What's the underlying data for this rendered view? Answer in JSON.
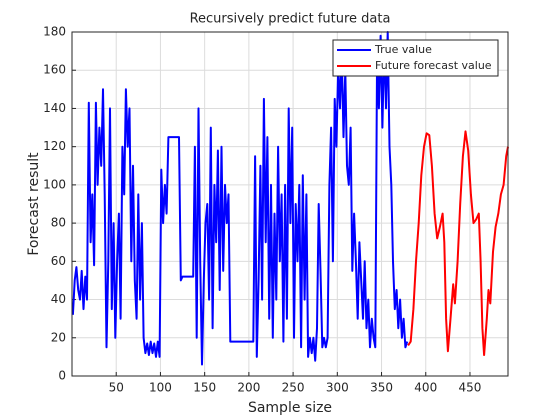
{
  "chart_data": {
    "type": "line",
    "title": "Recursively predict future data",
    "x_label": "Sample size",
    "y_label": "Forecast result",
    "xlim": [
      0,
      493
    ],
    "ylim": [
      0,
      180
    ],
    "xticks": [
      50,
      100,
      150,
      200,
      250,
      300,
      350,
      400,
      450
    ],
    "yticks": [
      0,
      20,
      40,
      60,
      80,
      100,
      120,
      140,
      160,
      180
    ],
    "grid": true,
    "legend": "northeast",
    "series": [
      {
        "name": "True value",
        "color": "#0000ff",
        "x": [
          1,
          3,
          5,
          7,
          9,
          11,
          13,
          15,
          17,
          19,
          21,
          23,
          25,
          27,
          29,
          31,
          33,
          35,
          37,
          39,
          41,
          43,
          45,
          47,
          49,
          51,
          53,
          55,
          57,
          59,
          61,
          63,
          65,
          67,
          69,
          71,
          73,
          75,
          77,
          79,
          81,
          83,
          85,
          87,
          89,
          91,
          93,
          95,
          97,
          99,
          101,
          103,
          105,
          107,
          109,
          121,
          123,
          125,
          137,
          139,
          141,
          143,
          145,
          147,
          149,
          151,
          153,
          155,
          157,
          159,
          161,
          163,
          165,
          167,
          169,
          171,
          173,
          175,
          177,
          179,
          205,
          207,
          209,
          211,
          213,
          215,
          217,
          219,
          221,
          223,
          225,
          227,
          229,
          231,
          233,
          235,
          237,
          239,
          241,
          243,
          245,
          247,
          249,
          251,
          253,
          255,
          257,
          259,
          261,
          263,
          265,
          267,
          269,
          271,
          273,
          275,
          277,
          279,
          281,
          283,
          285,
          287,
          289,
          291,
          293,
          295,
          297,
          299,
          301,
          303,
          305,
          307,
          309,
          311,
          313,
          315,
          317,
          319,
          321,
          323,
          325,
          327,
          329,
          331,
          333,
          335,
          337,
          339,
          341,
          343,
          345,
          347,
          349,
          351,
          353,
          355,
          357,
          359,
          361,
          363,
          365,
          367,
          369,
          371,
          373,
          375,
          377,
          379
        ],
        "values": [
          32,
          50,
          57,
          45,
          40,
          55,
          35,
          52,
          40,
          143,
          70,
          95,
          58,
          143,
          100,
          130,
          110,
          150,
          95,
          15,
          60,
          140,
          35,
          80,
          20,
          60,
          85,
          30,
          120,
          95,
          150,
          120,
          140,
          60,
          110,
          50,
          30,
          95,
          40,
          80,
          20,
          12,
          17,
          11,
          18,
          12,
          17,
          10,
          18,
          10,
          108,
          80,
          100,
          85,
          125,
          125,
          50,
          52,
          52,
          120,
          20,
          140,
          60,
          6,
          50,
          80,
          90,
          40,
          130,
          25,
          100,
          70,
          118,
          45,
          120,
          55,
          100,
          80,
          95,
          18,
          18,
          115,
          10,
          50,
          110,
          40,
          145,
          70,
          125,
          30,
          100,
          20,
          85,
          40,
          120,
          60,
          95,
          18,
          100,
          30,
          140,
          80,
          130,
          20,
          90,
          60,
          100,
          15,
          105,
          40,
          95,
          10,
          20,
          12,
          20,
          8,
          25,
          90,
          55,
          15,
          20,
          15,
          20,
          100,
          130,
          60,
          145,
          120,
          162,
          140,
          170,
          125,
          160,
          110,
          100,
          130,
          55,
          85,
          60,
          30,
          70,
          50,
          30,
          60,
          25,
          40,
          15,
          30,
          20,
          15,
          170,
          140,
          178,
          130,
          175,
          140,
          180,
          120,
          100,
          60,
          35,
          45,
          25,
          40,
          20,
          30,
          15,
          18
        ]
      },
      {
        "name": "Future forecast value",
        "color": "#ff0000",
        "x": [
          380,
          383,
          386,
          389,
          392,
          395,
          398,
          401,
          404,
          407,
          410,
          413,
          416,
          419,
          421,
          423,
          425,
          428,
          431,
          433,
          436,
          439,
          442,
          445,
          448,
          451,
          454,
          457,
          460,
          462,
          464,
          466,
          469,
          471,
          473,
          476,
          479,
          482,
          485,
          488,
          491,
          493
        ],
        "values": [
          16,
          18,
          35,
          60,
          80,
          105,
          120,
          127,
          126,
          110,
          85,
          72,
          78,
          85,
          70,
          30,
          13,
          30,
          48,
          38,
          60,
          90,
          115,
          128,
          118,
          95,
          80,
          82,
          85,
          60,
          25,
          11,
          30,
          45,
          38,
          65,
          78,
          85,
          95,
          100,
          115,
          120
        ]
      }
    ]
  }
}
